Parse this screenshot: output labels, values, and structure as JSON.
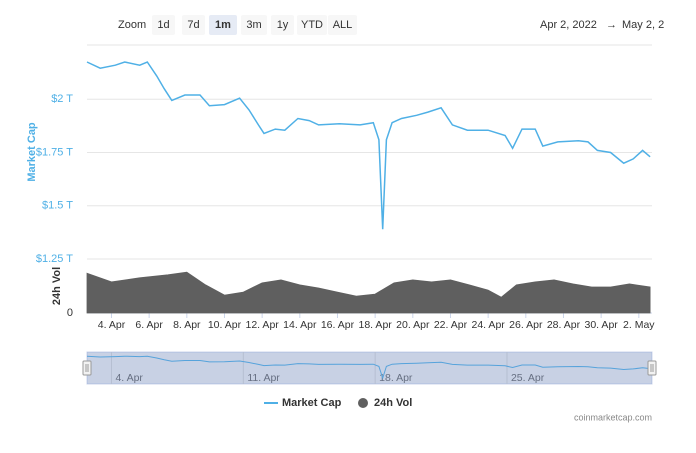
{
  "chart_data": {
    "type": "line",
    "range_selector": {
      "label": "Zoom",
      "buttons": [
        "1d",
        "7d",
        "1m",
        "3m",
        "1y",
        "YTD",
        "ALL"
      ],
      "selected": 2
    },
    "date_range": {
      "from": "Apr 2, 2022",
      "arrow": "→",
      "to": "May 2, 2"
    },
    "ylabel": "Market Cap",
    "y2label": "24h Vol",
    "credit": "coinmarketcap.com",
    "legend": "bottom",
    "xlim": [
      2.7,
      32.7
    ],
    "xticks": [
      {
        "value": 4,
        "label": "4. Apr"
      },
      {
        "value": 6,
        "label": "6. Apr"
      },
      {
        "value": 8,
        "label": "8. Apr"
      },
      {
        "value": 10,
        "label": "10. Apr"
      },
      {
        "value": 12,
        "label": "12. Apr"
      },
      {
        "value": 14,
        "label": "14. Apr"
      },
      {
        "value": 16,
        "label": "16. Apr"
      },
      {
        "value": 18,
        "label": "18. Apr"
      },
      {
        "value": 20,
        "label": "20. Apr"
      },
      {
        "value": 22,
        "label": "22. Apr"
      },
      {
        "value": 24,
        "label": "24. Apr"
      },
      {
        "value": 26,
        "label": "26. Apr"
      },
      {
        "value": 28,
        "label": "28. Apr"
      },
      {
        "value": 30,
        "label": "30. Apr"
      },
      {
        "value": 32,
        "label": "2. May"
      }
    ],
    "ylim": [
      1.25,
      2.255
    ],
    "yticks": [
      {
        "value": 1.25,
        "label": "$1.25 T"
      },
      {
        "value": 1.5,
        "label": "$1.5 T"
      },
      {
        "value": 1.75,
        "label": "$1.75 T"
      },
      {
        "value": 2,
        "label": "$2 T"
      }
    ],
    "y2lim": [
      0,
      100
    ],
    "y2ticks": [
      0
    ],
    "grid": true,
    "navigator": {
      "xticks": [
        {
          "value": 4,
          "label": "4. Apr"
        },
        {
          "value": 11,
          "label": "11. Apr"
        },
        {
          "value": 18,
          "label": "18. Apr"
        },
        {
          "value": 25,
          "label": "25. Apr"
        }
      ]
    },
    "series": [
      {
        "name": "Market Cap",
        "color": "#4fb0e6",
        "type": "line",
        "x": [
          2.7,
          3.4,
          4.2,
          4.7,
          5.5,
          5.9,
          6.4,
          6.8,
          7.2,
          7.9,
          8.7,
          9.2,
          10.0,
          10.8,
          11.3,
          11.8,
          12.1,
          12.7,
          13.2,
          13.9,
          14.5,
          15.0,
          16.1,
          17.2,
          17.9,
          18.2,
          18.4,
          18.6,
          18.9,
          19.4,
          20.2,
          20.8,
          21.5,
          22.1,
          22.9,
          24.0,
          24.9,
          25.3,
          25.8,
          26.5,
          26.9,
          27.7,
          28.8,
          29.3,
          29.8,
          30.5,
          31.2,
          31.7,
          32.2,
          32.6
        ],
        "values": [
          2.175,
          2.146,
          2.16,
          2.175,
          2.16,
          2.175,
          2.11,
          2.05,
          1.995,
          2.02,
          2.02,
          1.97,
          1.975,
          2.005,
          1.95,
          1.88,
          1.84,
          1.86,
          1.855,
          1.91,
          1.9,
          1.88,
          1.885,
          1.88,
          1.89,
          1.81,
          1.39,
          1.81,
          1.89,
          1.91,
          1.925,
          1.94,
          1.96,
          1.88,
          1.855,
          1.855,
          1.83,
          1.77,
          1.86,
          1.86,
          1.78,
          1.8,
          1.805,
          1.8,
          1.76,
          1.75,
          1.7,
          1.72,
          1.76,
          1.73
        ]
      },
      {
        "name": "24h Vol",
        "color": "#5f5f5f",
        "type": "area",
        "axis": "y2",
        "x": [
          2.7,
          4,
          5.5,
          7,
          8,
          9,
          10,
          11,
          12,
          13,
          14,
          15,
          16,
          17,
          18,
          19,
          20,
          21,
          22,
          23,
          24,
          24.7,
          25.5,
          26.5,
          27.5,
          28.5,
          29.5,
          30.5,
          31.5,
          32.6
        ],
        "values": [
          78,
          61,
          69,
          75,
          80,
          55,
          35,
          41,
          59,
          65,
          55,
          49,
          41,
          33,
          37,
          59,
          65,
          61,
          65,
          55,
          45,
          31,
          55,
          61,
          65,
          57,
          51,
          51,
          57,
          51
        ]
      }
    ]
  }
}
